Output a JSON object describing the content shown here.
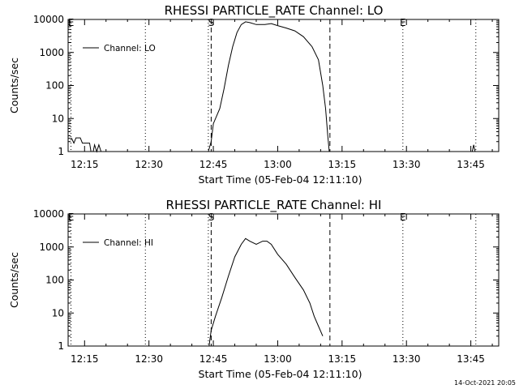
{
  "footer_timestamp": "14-Oct-2021 20:05",
  "chart_data": [
    {
      "type": "line",
      "title": "RHESSI PARTICLE_RATE Channel: LO",
      "xlabel": "Start Time (05-Feb-04 12:11:10)",
      "ylabel": "Counts/sec",
      "y_scale": "log",
      "ylim": [
        1,
        10000
      ],
      "xlim": [
        "12:11:10",
        "13:51:30"
      ],
      "x_tick_labels": [
        "12:15",
        "12:30",
        "12:45",
        "13:00",
        "13:15",
        "13:30",
        "13:45"
      ],
      "y_tick_labels": [
        "1",
        "10",
        "100",
        "1000",
        "10000"
      ],
      "legend": "top-left",
      "markers": [
        {
          "time": "12:11:50",
          "style": "dotted",
          "label": "E"
        },
        {
          "time": "12:29:10",
          "style": "dotted",
          "label": ""
        },
        {
          "time": "12:43:50",
          "style": "dotted",
          "label": ""
        },
        {
          "time": "12:44:30",
          "style": "dashed",
          "label": "S"
        },
        {
          "time": "13:12:10",
          "style": "dashed",
          "label": ""
        },
        {
          "time": "13:29:10",
          "style": "dotted",
          "label": "E"
        },
        {
          "time": "13:46:10",
          "style": "dotted",
          "label": ""
        }
      ],
      "series": [
        {
          "name": "Channel: LO",
          "points": [
            [
              "12:11:10",
              2.5
            ],
            [
              "12:12:00",
              2.5
            ],
            [
              "12:12:30",
              1.8
            ],
            [
              "12:13:00",
              2.6
            ],
            [
              "12:14:00",
              2.6
            ],
            [
              "12:14:30",
              1.8
            ],
            [
              "12:16:10",
              1.8
            ],
            [
              "12:16:30",
              1
            ],
            [
              "12:17:00",
              1
            ],
            [
              "12:17:20",
              1.6
            ],
            [
              "12:17:50",
              1
            ],
            [
              "12:18:20",
              1.6
            ],
            [
              "12:18:50",
              1
            ],
            [
              "12:43:50",
              1
            ],
            [
              "12:44:30",
              2
            ],
            [
              "12:45:00",
              7
            ],
            [
              "12:46:30",
              20
            ],
            [
              "12:47:30",
              80
            ],
            [
              "12:48:30",
              400
            ],
            [
              "12:49:30",
              1500
            ],
            [
              "12:50:30",
              4000
            ],
            [
              "12:51:30",
              7000
            ],
            [
              "12:52:30",
              8500
            ],
            [
              "12:53:30",
              8000
            ],
            [
              "12:55:00",
              7000
            ],
            [
              "12:57:00",
              7000
            ],
            [
              "12:58:30",
              7500
            ],
            [
              "13:00:00",
              6500
            ],
            [
              "13:02:00",
              5500
            ],
            [
              "13:04:00",
              4500
            ],
            [
              "13:06:00",
              3000
            ],
            [
              "13:08:00",
              1500
            ],
            [
              "13:09:30",
              600
            ],
            [
              "13:10:30",
              100
            ],
            [
              "13:11:10",
              20
            ],
            [
              "13:11:40",
              3
            ],
            [
              "13:12:00",
              1
            ],
            [
              "13:45:20",
              1
            ],
            [
              "13:45:40",
              1.6
            ],
            [
              "13:46:00",
              1
            ]
          ]
        }
      ]
    },
    {
      "type": "line",
      "title": "RHESSI PARTICLE_RATE Channel: HI",
      "xlabel": "Start Time (05-Feb-04 12:11:10)",
      "ylabel": "Counts/sec",
      "y_scale": "log",
      "ylim": [
        1,
        10000
      ],
      "xlim": [
        "12:11:10",
        "13:51:30"
      ],
      "x_tick_labels": [
        "12:15",
        "12:30",
        "12:45",
        "13:00",
        "13:15",
        "13:30",
        "13:45"
      ],
      "y_tick_labels": [
        "1",
        "10",
        "100",
        "1000",
        "10000"
      ],
      "legend": "top-left",
      "markers": [
        {
          "time": "12:11:50",
          "style": "dotted",
          "label": "E"
        },
        {
          "time": "12:29:10",
          "style": "dotted",
          "label": ""
        },
        {
          "time": "12:43:50",
          "style": "dotted",
          "label": ""
        },
        {
          "time": "12:44:30",
          "style": "dashed",
          "label": "S"
        },
        {
          "time": "13:12:10",
          "style": "dashed",
          "label": ""
        },
        {
          "time": "13:29:10",
          "style": "dotted",
          "label": "E"
        },
        {
          "time": "13:46:10",
          "style": "dotted",
          "label": ""
        }
      ],
      "series": [
        {
          "name": "Channel: HI",
          "points": [
            [
              "12:44:00",
              1
            ],
            [
              "12:44:30",
              3
            ],
            [
              "12:45:30",
              8
            ],
            [
              "12:47:00",
              30
            ],
            [
              "12:48:30",
              130
            ],
            [
              "12:50:00",
              500
            ],
            [
              "12:51:30",
              1200
            ],
            [
              "12:52:30",
              1800
            ],
            [
              "12:53:30",
              1500
            ],
            [
              "12:55:00",
              1200
            ],
            [
              "12:56:30",
              1500
            ],
            [
              "12:57:30",
              1500
            ],
            [
              "12:58:30",
              1200
            ],
            [
              "13:00:00",
              600
            ],
            [
              "13:02:00",
              300
            ],
            [
              "13:04:00",
              120
            ],
            [
              "13:06:00",
              50
            ],
            [
              "13:07:30",
              20
            ],
            [
              "13:08:30",
              8
            ],
            [
              "13:09:30",
              4
            ],
            [
              "13:10:30",
              2
            ]
          ]
        }
      ]
    }
  ]
}
